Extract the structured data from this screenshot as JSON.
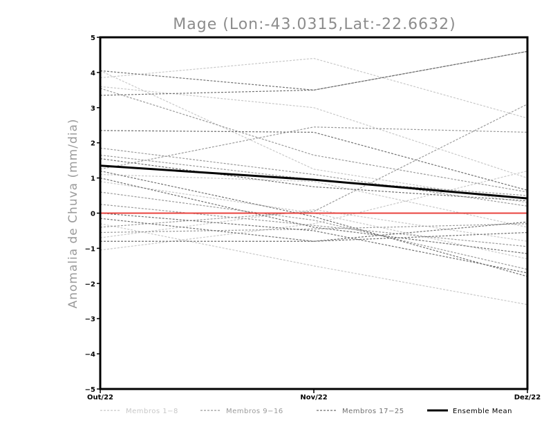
{
  "chart_data": {
    "type": "line",
    "title": "Mage (Lon:-43.0315,Lat:-22.6632)",
    "xlabel": "",
    "ylabel": "Anomalia de Chuva (mm/dia)",
    "categories": [
      "Out/22",
      "Nov/22",
      "Dez/22"
    ],
    "ylim": [
      -5,
      5
    ],
    "yticks": [
      -5,
      -4,
      -3,
      -2,
      -1,
      0,
      1,
      2,
      3,
      4,
      5
    ],
    "grid": false,
    "zero_line_color": "#e8413c",
    "groups": [
      {
        "name": "Membros 1-8",
        "color": "#c8c8c8"
      },
      {
        "name": "Membros 9-16",
        "color": "#9a9a9a"
      },
      {
        "name": "Membros 17-25",
        "color": "#6f6f6f"
      },
      {
        "name": "Ensemble Mean",
        "color": "#000000"
      }
    ],
    "series": [
      {
        "group": 0,
        "values": [
          3.85,
          4.4,
          2.7
        ]
      },
      {
        "group": 0,
        "values": [
          3.6,
          3.0,
          1.0
        ]
      },
      {
        "group": 0,
        "values": [
          4.05,
          1.25,
          0.3
        ]
      },
      {
        "group": 0,
        "values": [
          1.1,
          0.9,
          -0.4
        ]
      },
      {
        "group": 0,
        "values": [
          0.9,
          0.0,
          -1.3
        ]
      },
      {
        "group": 0,
        "values": [
          -0.3,
          -1.5,
          -2.6
        ]
      },
      {
        "group": 0,
        "values": [
          -0.7,
          0.1,
          -0.8
        ]
      },
      {
        "group": 0,
        "values": [
          -1.05,
          -0.3,
          1.2
        ]
      },
      {
        "group": 1,
        "values": [
          3.55,
          1.65,
          0.6
        ]
      },
      {
        "group": 1,
        "values": [
          1.85,
          1.1,
          0.2
        ]
      },
      {
        "group": 1,
        "values": [
          1.25,
          2.45,
          2.3
        ]
      },
      {
        "group": 1,
        "values": [
          0.6,
          -0.2,
          -1.6
        ]
      },
      {
        "group": 1,
        "values": [
          0.25,
          -0.35,
          -0.95
        ]
      },
      {
        "group": 1,
        "values": [
          -0.4,
          0.05,
          3.1
        ]
      },
      {
        "group": 1,
        "values": [
          1.65,
          0.95,
          0.5
        ]
      },
      {
        "group": 1,
        "values": [
          -0.55,
          -0.45,
          -0.3
        ]
      },
      {
        "group": 2,
        "values": [
          4.05,
          3.5,
          4.6
        ]
      },
      {
        "group": 2,
        "values": [
          3.35,
          3.5,
          4.6
        ]
      },
      {
        "group": 2,
        "values": [
          2.35,
          2.3,
          0.65
        ]
      },
      {
        "group": 2,
        "values": [
          1.55,
          0.75,
          0.35
        ]
      },
      {
        "group": 2,
        "values": [
          1.2,
          -0.1,
          -1.8
        ]
      },
      {
        "group": 2,
        "values": [
          -0.15,
          -0.8,
          -0.25
        ]
      },
      {
        "group": 2,
        "values": [
          -0.8,
          -0.8,
          -0.55
        ]
      },
      {
        "group": 2,
        "values": [
          1.0,
          -0.4,
          -1.15
        ]
      },
      {
        "group": 2,
        "values": [
          0.0,
          -0.5,
          -1.7
        ]
      },
      {
        "group": 3,
        "values": [
          1.35,
          0.95,
          0.42
        ]
      }
    ]
  }
}
